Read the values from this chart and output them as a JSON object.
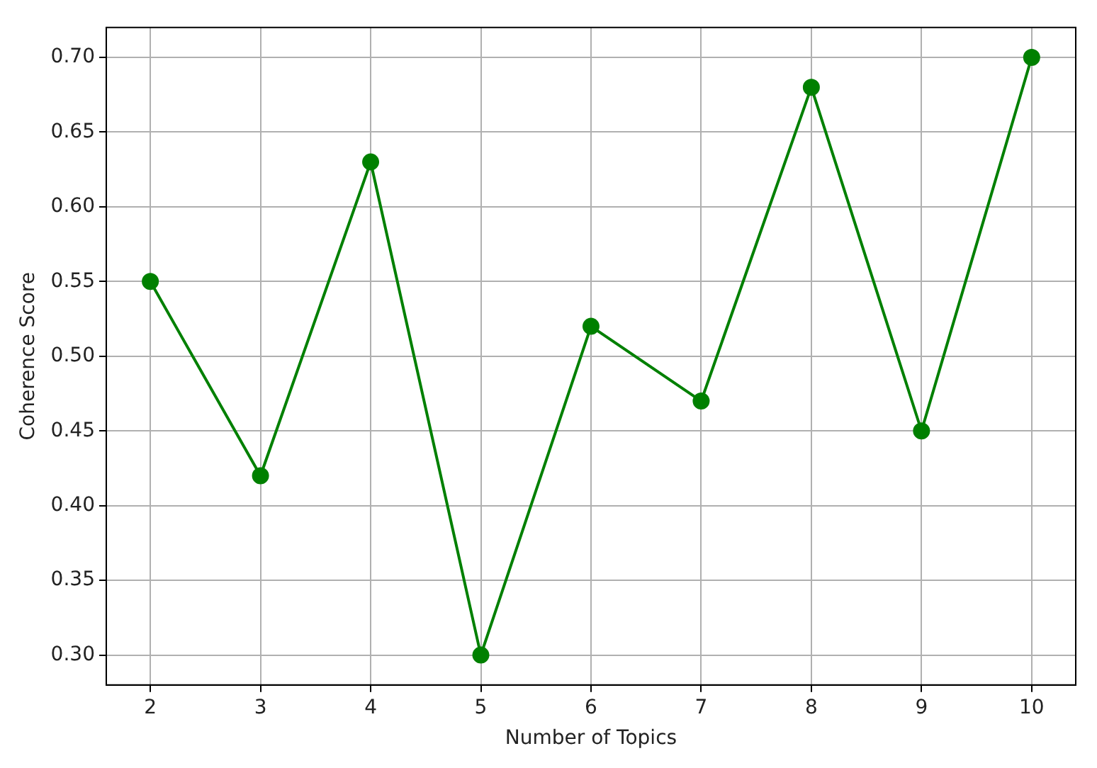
{
  "chart_data": {
    "type": "line",
    "xlabel": "Number of Topics",
    "ylabel": "Coherence Score",
    "x": [
      2,
      3,
      4,
      5,
      6,
      7,
      8,
      9,
      10
    ],
    "series": [
      {
        "color": "#008000",
        "values": [
          0.55,
          0.42,
          0.63,
          0.3,
          0.52,
          0.47,
          0.68,
          0.45,
          0.7
        ]
      }
    ],
    "xlim": [
      1.6,
      10.4
    ],
    "xticks": [
      2,
      3,
      4,
      5,
      6,
      7,
      8,
      9,
      10
    ],
    "ylim": [
      0.28,
      0.72
    ],
    "yticks": [
      {
        "value": 0.3,
        "label": "0.30"
      },
      {
        "value": 0.35,
        "label": "0.35"
      },
      {
        "value": 0.4,
        "label": "0.40"
      },
      {
        "value": 0.45,
        "label": "0.45"
      },
      {
        "value": 0.5,
        "label": "0.50"
      },
      {
        "value": 0.55,
        "label": "0.55"
      },
      {
        "value": 0.6,
        "label": "0.60"
      },
      {
        "value": 0.65,
        "label": "0.65"
      },
      {
        "value": 0.7,
        "label": "0.70"
      }
    ],
    "grid": true,
    "marker": "circle",
    "line_style": "solid"
  }
}
